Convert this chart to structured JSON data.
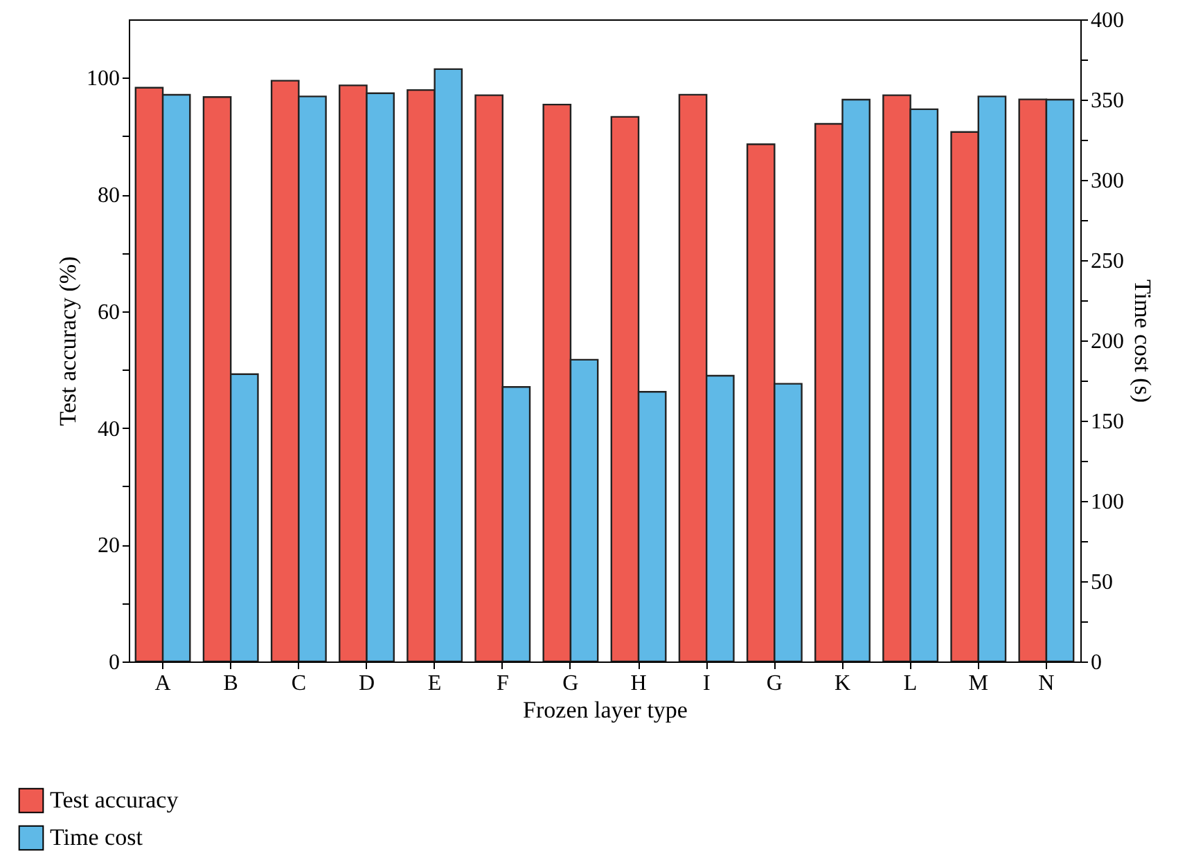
{
  "chart_data": {
    "type": "bar",
    "xlabel": "Frozen layer type",
    "ylabel": "Test accuracy (%)",
    "y2label": "Time cost (s)",
    "categories": [
      "A",
      "B",
      "C",
      "D",
      "E",
      "F",
      "G",
      "H",
      "I",
      "G",
      "K",
      "L",
      "M",
      "N"
    ],
    "series": [
      {
        "name": "Test accuracy",
        "color": "#ef5b51",
        "values": [
          98.3,
          96.7,
          99.5,
          98.7,
          97.9,
          97.0,
          95.4,
          93.3,
          97.1,
          88.6,
          92.1,
          97.0,
          90.7,
          96.3
        ]
      },
      {
        "name": "Time cost",
        "color": "#5fb9e7",
        "axis": "y2",
        "values": [
          353,
          179,
          352,
          354,
          369,
          171,
          188,
          168,
          178,
          173,
          350,
          344,
          352,
          350
        ]
      }
    ],
    "ylim": [
      0,
      110
    ],
    "yticks": [
      0,
      {
        "value": 10,
        "label": null
      },
      20,
      {
        "value": 30,
        "label": null
      },
      40,
      {
        "value": 50,
        "label": null
      },
      60,
      {
        "value": 70,
        "label": null
      },
      80,
      {
        "value": 90,
        "label": null
      },
      100
    ],
    "y2lim": [
      0,
      400
    ],
    "y2ticks": [
      0,
      {
        "value": 25,
        "label": null
      },
      50,
      {
        "value": 75,
        "label": null
      },
      100,
      {
        "value": 125,
        "label": null
      },
      150,
      {
        "value": 175,
        "label": null
      },
      200,
      {
        "value": 225,
        "label": null
      },
      250,
      {
        "value": 275,
        "label": null
      },
      300,
      {
        "value": 325,
        "label": null
      },
      350,
      {
        "value": 375,
        "label": null
      },
      400
    ],
    "grid": false,
    "legend": "bottom left"
  }
}
